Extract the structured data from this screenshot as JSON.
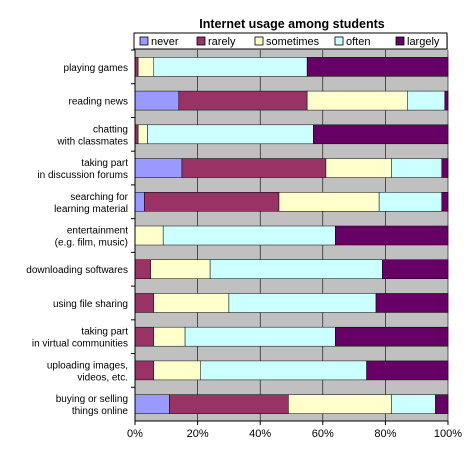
{
  "chart_data": {
    "type": "bar",
    "orientation": "horizontal",
    "stacked": true,
    "title": "Internet usage among students",
    "categories": [
      [
        "playing games"
      ],
      [
        "reading news"
      ],
      [
        "chatting",
        "with classmates"
      ],
      [
        "taking part",
        "in discussion forums"
      ],
      [
        "searching for",
        "learning material"
      ],
      [
        "entertainment",
        "(e.g. film, music)"
      ],
      [
        "downloading softwares"
      ],
      [
        "using file sharing"
      ],
      [
        "taking part",
        "in virtual communities"
      ],
      [
        "uploading images,",
        "videos, etc."
      ],
      [
        "buying or selling",
        "things online"
      ]
    ],
    "series": [
      {
        "name": "never",
        "color": "#9999ff",
        "values": [
          0,
          14,
          0,
          15,
          3,
          0,
          0,
          0,
          0,
          0,
          11
        ]
      },
      {
        "name": "rarely",
        "color": "#993366",
        "values": [
          1,
          41,
          1,
          46,
          43,
          0,
          5,
          6,
          6,
          6,
          38
        ]
      },
      {
        "name": "sometimes",
        "color": "#ffffcc",
        "values": [
          5,
          32,
          3,
          21,
          32,
          9,
          19,
          24,
          10,
          15,
          33
        ]
      },
      {
        "name": "often",
        "color": "#ccffff",
        "values": [
          49,
          12,
          53,
          16,
          20,
          55,
          55,
          47,
          48,
          53,
          14
        ]
      },
      {
        "name": "largely",
        "color": "#660066",
        "values": [
          45,
          1,
          43,
          2,
          2,
          36,
          21,
          23,
          36,
          26,
          4
        ]
      }
    ],
    "x_ticks": [
      "0%",
      "20%",
      "40%",
      "60%",
      "80%",
      "100%"
    ],
    "xlim": [
      0,
      100
    ],
    "legend_position": "top",
    "grid": true
  }
}
